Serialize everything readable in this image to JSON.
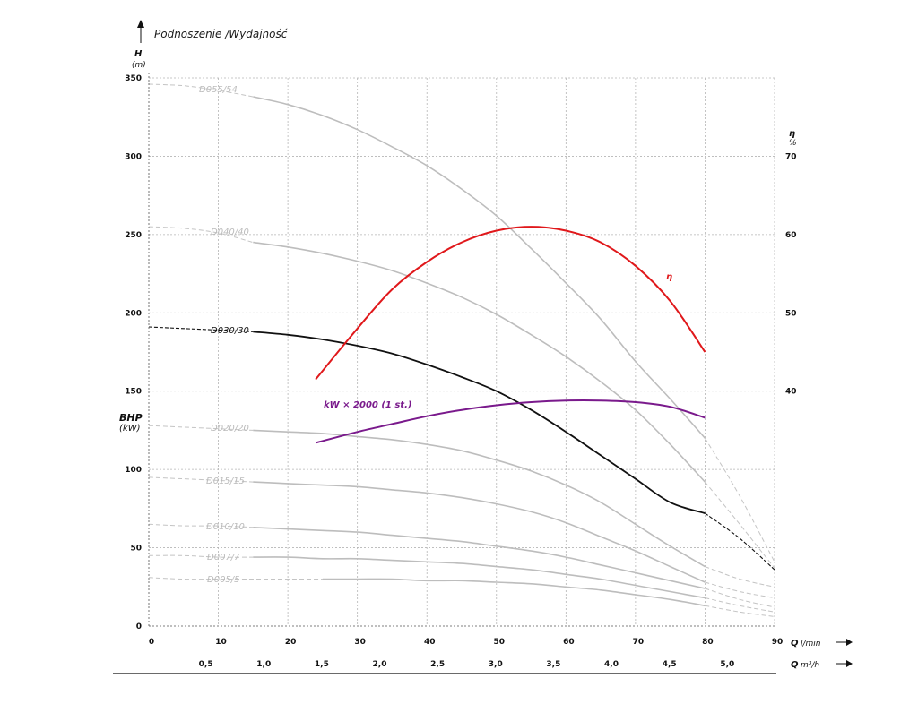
{
  "title": "Podnoszenie /Wydajność",
  "chart_data": {
    "type": "line",
    "title": "Podnoszenie /Wydajność",
    "x_axis": {
      "label": "Q",
      "unit": "l/min",
      "range": [
        0,
        90
      ],
      "ticks": [
        "0",
        "10",
        "20",
        "30",
        "40",
        "50",
        "60",
        "70",
        "80",
        "90"
      ]
    },
    "x2_axis": {
      "label": "Q",
      "unit": "m³/h",
      "ticks": [
        {
          "value": 0.5,
          "label": "0,5"
        },
        {
          "value": 1.0,
          "label": "1,0"
        },
        {
          "value": 1.5,
          "label": "1,5"
        },
        {
          "value": 2.0,
          "label": "2,0"
        },
        {
          "value": 2.5,
          "label": "2,5"
        },
        {
          "value": 3.0,
          "label": "3,0"
        },
        {
          "value": 3.5,
          "label": "3,5"
        },
        {
          "value": 4.0,
          "label": "4,0"
        },
        {
          "value": 4.5,
          "label": "4,5"
        },
        {
          "value": 5.0,
          "label": "5,0"
        }
      ]
    },
    "y_axis": {
      "label": "H",
      "unit": "(m)",
      "range": [
        0,
        350
      ],
      "ticks": [
        "0",
        "50",
        "100",
        "150",
        "200",
        "250",
        "300",
        "350"
      ]
    },
    "y_axis_bhp": {
      "label": "BHP",
      "unit": "(kW)"
    },
    "y2_axis": {
      "label": "η",
      "unit": "%",
      "ticks": [
        {
          "value": 40,
          "label": "40",
          "at_h": 150
        },
        {
          "value": 50,
          "label": "50",
          "at_h": 200
        },
        {
          "value": 60,
          "label": "60",
          "at_h": 250
        },
        {
          "value": 70,
          "label": "70",
          "at_h": 300
        }
      ]
    },
    "grid": true,
    "series": [
      {
        "name": "D055/54",
        "color": "#bdbdbd",
        "dashed_end": false,
        "points": [
          [
            15,
            338
          ],
          [
            20,
            333
          ],
          [
            25,
            326
          ],
          [
            30,
            317
          ],
          [
            35,
            306
          ],
          [
            40,
            294
          ],
          [
            45,
            279
          ],
          [
            50,
            262
          ],
          [
            55,
            241
          ],
          [
            60,
            219
          ],
          [
            65,
            196
          ],
          [
            70,
            169
          ],
          [
            75,
            145
          ],
          [
            80,
            120
          ]
        ],
        "extension": [
          [
            0,
            346
          ],
          [
            5,
            345
          ],
          [
            10,
            342
          ],
          [
            15,
            338
          ]
        ],
        "tail": [
          [
            80,
            120
          ],
          [
            85,
            83
          ],
          [
            90,
            41
          ]
        ]
      },
      {
        "name": "D040/40",
        "color": "#bdbdbd",
        "points": [
          [
            15,
            245
          ],
          [
            20,
            242
          ],
          [
            25,
            238
          ],
          [
            30,
            233
          ],
          [
            35,
            227
          ],
          [
            40,
            219
          ],
          [
            45,
            210
          ],
          [
            50,
            199
          ],
          [
            55,
            186
          ],
          [
            60,
            172
          ],
          [
            65,
            156
          ],
          [
            70,
            138
          ],
          [
            75,
            116
          ],
          [
            80,
            92
          ]
        ],
        "extension": [
          [
            0,
            255
          ],
          [
            5,
            254
          ],
          [
            10,
            251
          ],
          [
            15,
            245
          ]
        ],
        "tail": [
          [
            80,
            92
          ],
          [
            85,
            65
          ],
          [
            90,
            37
          ]
        ]
      },
      {
        "name": "D030/30",
        "color": "#111111",
        "points": [
          [
            15,
            188
          ],
          [
            20,
            186
          ],
          [
            25,
            183
          ],
          [
            30,
            179
          ],
          [
            35,
            174
          ],
          [
            40,
            167
          ],
          [
            45,
            159
          ],
          [
            50,
            150
          ],
          [
            55,
            138
          ],
          [
            60,
            124
          ],
          [
            65,
            109
          ],
          [
            70,
            94
          ],
          [
            75,
            79
          ],
          [
            80,
            72
          ]
        ],
        "extension": [
          [
            0,
            191
          ],
          [
            5,
            190
          ],
          [
            10,
            189
          ],
          [
            15,
            188
          ]
        ],
        "tail": [
          [
            80,
            72
          ],
          [
            85,
            56
          ],
          [
            90,
            36
          ]
        ]
      },
      {
        "name": "D020/20",
        "color": "#bdbdbd",
        "points": [
          [
            15,
            125
          ],
          [
            20,
            124
          ],
          [
            25,
            123
          ],
          [
            30,
            121
          ],
          [
            35,
            119
          ],
          [
            40,
            116
          ],
          [
            45,
            112
          ],
          [
            50,
            106
          ],
          [
            55,
            99
          ],
          [
            60,
            90
          ],
          [
            65,
            79
          ],
          [
            70,
            65
          ],
          [
            75,
            51
          ],
          [
            80,
            38
          ]
        ],
        "extension": [
          [
            0,
            128
          ],
          [
            5,
            127
          ],
          [
            10,
            126
          ],
          [
            15,
            125
          ]
        ],
        "tail": [
          [
            80,
            38
          ],
          [
            85,
            30
          ],
          [
            90,
            25
          ]
        ]
      },
      {
        "name": "D015/15",
        "color": "#bdbdbd",
        "points": [
          [
            15,
            92
          ],
          [
            20,
            91
          ],
          [
            25,
            90
          ],
          [
            30,
            89
          ],
          [
            35,
            87
          ],
          [
            40,
            85
          ],
          [
            45,
            82
          ],
          [
            50,
            78
          ],
          [
            55,
            73
          ],
          [
            60,
            66
          ],
          [
            65,
            57
          ],
          [
            70,
            48
          ],
          [
            75,
            38
          ],
          [
            80,
            28
          ]
        ],
        "extension": [
          [
            0,
            95
          ],
          [
            5,
            94
          ],
          [
            10,
            93
          ],
          [
            15,
            92
          ]
        ],
        "tail": [
          [
            80,
            28
          ],
          [
            85,
            22
          ],
          [
            90,
            18
          ]
        ]
      },
      {
        "name": "D010/10",
        "color": "#bdbdbd",
        "points": [
          [
            15,
            63
          ],
          [
            20,
            62
          ],
          [
            25,
            61
          ],
          [
            30,
            60
          ],
          [
            35,
            58
          ],
          [
            40,
            56
          ],
          [
            45,
            54
          ],
          [
            50,
            51
          ],
          [
            55,
            48
          ],
          [
            60,
            44
          ],
          [
            65,
            39
          ],
          [
            70,
            34
          ],
          [
            75,
            29
          ],
          [
            80,
            24
          ]
        ],
        "extension": [
          [
            0,
            65
          ],
          [
            5,
            64
          ],
          [
            10,
            64
          ],
          [
            15,
            63
          ]
        ],
        "tail": [
          [
            80,
            24
          ],
          [
            85,
            17
          ],
          [
            90,
            12
          ]
        ]
      },
      {
        "name": "D007/7",
        "color": "#bdbdbd",
        "points": [
          [
            15,
            44
          ],
          [
            20,
            44
          ],
          [
            25,
            43
          ],
          [
            30,
            43
          ],
          [
            35,
            42
          ],
          [
            40,
            41
          ],
          [
            45,
            40
          ],
          [
            50,
            38
          ],
          [
            55,
            36
          ],
          [
            60,
            33
          ],
          [
            65,
            30
          ],
          [
            70,
            26
          ],
          [
            75,
            22
          ],
          [
            80,
            18
          ]
        ],
        "extension": [
          [
            0,
            45
          ],
          [
            5,
            45
          ],
          [
            10,
            44
          ],
          [
            15,
            44
          ]
        ],
        "tail": [
          [
            80,
            18
          ],
          [
            85,
            13
          ],
          [
            90,
            9
          ]
        ]
      },
      {
        "name": "D005/5",
        "color": "#bdbdbd",
        "points": [
          [
            25,
            30
          ],
          [
            30,
            30
          ],
          [
            35,
            30
          ],
          [
            40,
            29
          ],
          [
            45,
            29
          ],
          [
            50,
            28
          ],
          [
            55,
            27
          ],
          [
            60,
            25
          ],
          [
            65,
            23
          ],
          [
            70,
            20
          ],
          [
            75,
            17
          ],
          [
            80,
            13
          ]
        ],
        "extension": [
          [
            0,
            31
          ],
          [
            5,
            30
          ],
          [
            10,
            30
          ],
          [
            15,
            30
          ],
          [
            20,
            30
          ],
          [
            25,
            30
          ]
        ],
        "tail": [
          [
            80,
            13
          ],
          [
            85,
            9
          ],
          [
            90,
            6
          ]
        ]
      }
    ],
    "efficiency": {
      "name": "η",
      "color": "#e0181b",
      "unit": "%",
      "points": [
        [
          24,
          41.5
        ],
        [
          30,
          48
        ],
        [
          35,
          53
        ],
        [
          40,
          56.5
        ],
        [
          45,
          59
        ],
        [
          50,
          60.5
        ],
        [
          55,
          61
        ],
        [
          60,
          60.5
        ],
        [
          65,
          59
        ],
        [
          70,
          56
        ],
        [
          75,
          51.5
        ],
        [
          80,
          45
        ]
      ]
    },
    "power": {
      "name": "kW × 2000 (1 st.)",
      "color": "#7a1a8c",
      "points": [
        [
          24,
          117
        ],
        [
          30,
          124
        ],
        [
          35,
          129
        ],
        [
          40,
          134
        ],
        [
          45,
          138
        ],
        [
          50,
          141
        ],
        [
          55,
          143
        ],
        [
          60,
          144
        ],
        [
          65,
          144
        ],
        [
          70,
          143
        ],
        [
          75,
          140
        ],
        [
          80,
          133
        ]
      ]
    },
    "labels": {
      "D055/54": "D055/54",
      "D040/40": "D040/40",
      "D030/30": "D030/30",
      "D020/20": "D020/20",
      "D015/15": "D015/15",
      "D010/10": "D010/10",
      "D007/7": "D007/7",
      "D005/5": "D005/5"
    }
  },
  "axis_titles": {
    "h": "H",
    "h_unit": "(m)",
    "bhp": "BHP",
    "bhp_unit": "(kW)",
    "eta": "η",
    "eta_unit": "%",
    "q_lmin": "Q",
    "q_lmin_unit": "l/min",
    "q_m3h": "Q",
    "q_m3h_unit": "m³/h"
  }
}
